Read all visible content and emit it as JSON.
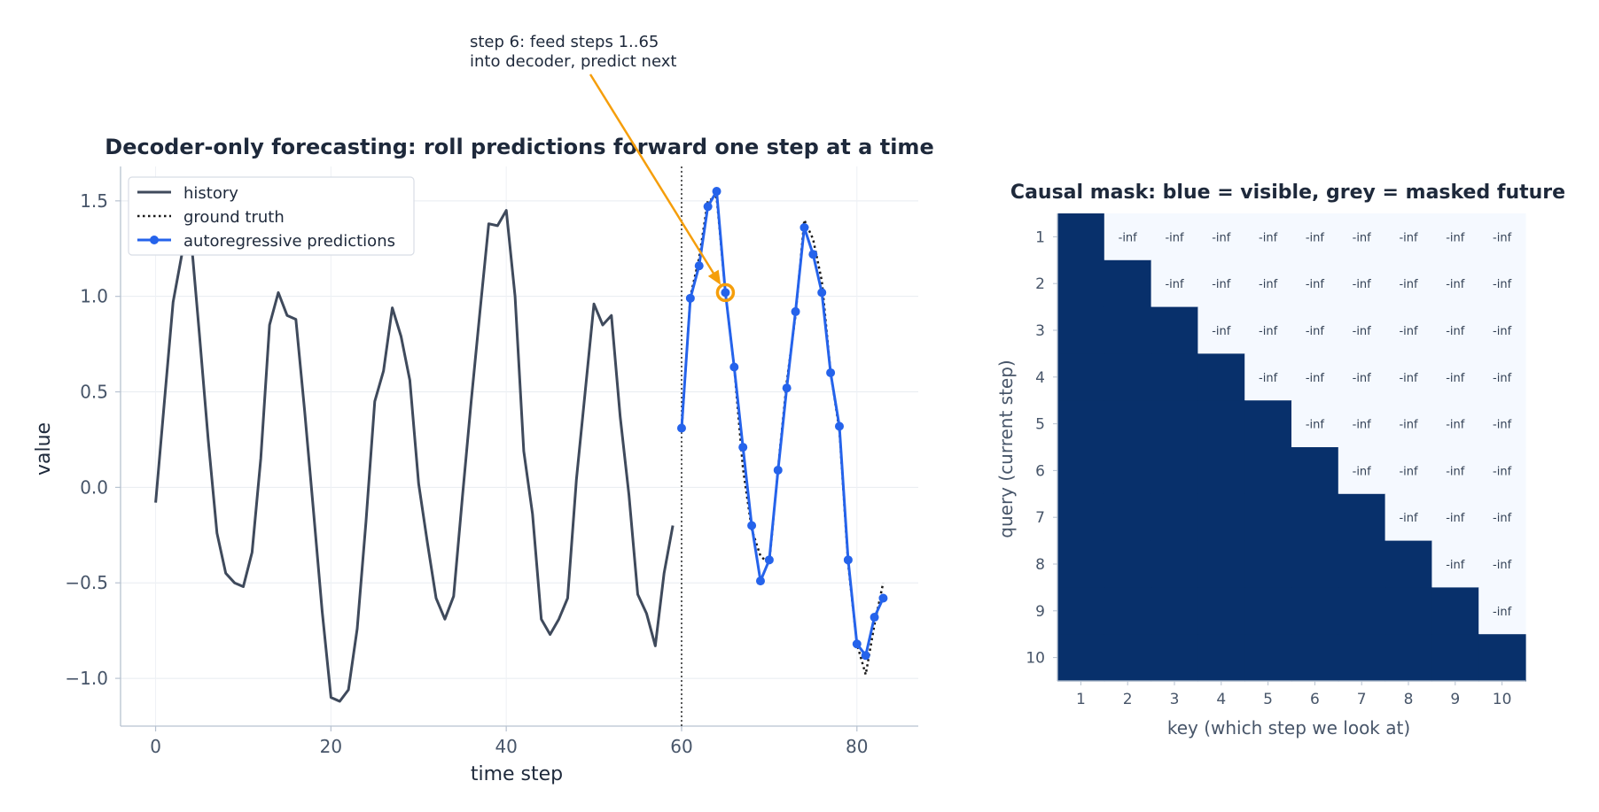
{
  "colors": {
    "history": "#3f4a5c",
    "truth": "#1a1a1a",
    "pred": "#2563eb",
    "highlight": "#f59e0b",
    "title": "#1e293b",
    "axis": "#475569",
    "mask_visible": "#08306b",
    "mask_masked": "#f5f9ff"
  },
  "chart_data": [
    {
      "type": "line",
      "title": "Decoder-only forecasting: roll predictions forward one step at a time",
      "xlabel": "time step",
      "ylabel": "value",
      "xlim": [
        -4,
        87
      ],
      "ylim": [
        -1.25,
        1.68
      ],
      "xticks": [
        0,
        20,
        40,
        60,
        80
      ],
      "yticks": [
        1.5,
        1.0,
        0.5,
        0.0,
        -0.5,
        -1.0
      ],
      "ytick_labels": [
        "1.5",
        "1.0",
        "0.5",
        "0.0",
        "−0.5",
        "−1.0"
      ],
      "grid": true,
      "legend_placement": "upper-left",
      "forecast_start": 60,
      "series": [
        {
          "name": "history",
          "style": "solid",
          "x": [
            0,
            1,
            2,
            3,
            4,
            5,
            6,
            7,
            8,
            9,
            10,
            11,
            12,
            13,
            14,
            15,
            16,
            17,
            18,
            19,
            20,
            21,
            22,
            23,
            24,
            25,
            26,
            27,
            28,
            29,
            30,
            31,
            32,
            33,
            34,
            35,
            36,
            37,
            38,
            39,
            40,
            41,
            42,
            43,
            44,
            45,
            46,
            47,
            48,
            49,
            50,
            51,
            52,
            53,
            54,
            55,
            56,
            57,
            58,
            59
          ],
          "y": [
            -0.08,
            0.45,
            0.97,
            1.22,
            1.33,
            0.8,
            0.25,
            -0.24,
            -0.45,
            -0.5,
            -0.52,
            -0.34,
            0.15,
            0.85,
            1.02,
            0.9,
            0.88,
            0.4,
            -0.12,
            -0.65,
            -1.1,
            -1.12,
            -1.06,
            -0.74,
            -0.18,
            0.45,
            0.61,
            0.94,
            0.79,
            0.56,
            0.02,
            -0.29,
            -0.58,
            -0.69,
            -0.57,
            -0.05,
            0.45,
            0.92,
            1.38,
            1.37,
            1.45,
            1.0,
            0.19,
            -0.14,
            -0.69,
            -0.77,
            -0.69,
            -0.58,
            0.04,
            0.5,
            0.96,
            0.85,
            0.9,
            0.37,
            -0.04,
            -0.56,
            -0.66,
            -0.83,
            -0.45,
            -0.2
          ]
        },
        {
          "name": "ground truth",
          "style": "dotted",
          "x": [
            60,
            61,
            62,
            63,
            64,
            65,
            66,
            67,
            68,
            69,
            70,
            71,
            72,
            73,
            74,
            75,
            76,
            77,
            78,
            79,
            80,
            81,
            82,
            83
          ],
          "y": [
            0.3,
            1.0,
            1.2,
            1.5,
            1.52,
            1.02,
            0.63,
            0.1,
            -0.22,
            -0.36,
            -0.4,
            0.1,
            0.55,
            0.9,
            1.4,
            1.3,
            1.08,
            0.6,
            0.3,
            -0.4,
            -0.82,
            -0.98,
            -0.72,
            -0.5
          ]
        },
        {
          "name": "autoregressive predictions",
          "style": "solid-marker",
          "x": [
            60,
            61,
            62,
            63,
            64,
            65,
            66,
            67,
            68,
            69,
            70,
            71,
            72,
            73,
            74,
            75,
            76,
            77,
            78,
            79,
            80,
            81,
            82,
            83
          ],
          "y": [
            0.31,
            0.99,
            1.16,
            1.47,
            1.55,
            1.02,
            0.63,
            0.21,
            -0.2,
            -0.49,
            -0.38,
            0.09,
            0.52,
            0.92,
            1.36,
            1.22,
            1.02,
            0.6,
            0.32,
            -0.38,
            -0.82,
            -0.88,
            -0.68,
            -0.58
          ]
        }
      ],
      "highlight": {
        "x": 65,
        "y": 1.02
      },
      "annotation": {
        "lines": [
          "step 6: feed steps 1..65",
          "into decoder, predict next"
        ],
        "target": {
          "x": 65,
          "y": 1.02
        }
      }
    },
    {
      "type": "heatmap",
      "title": "Causal mask: blue = visible, grey = masked future",
      "xlabel": "key (which step we look at)",
      "ylabel": "query (current step)",
      "rows": [
        "1",
        "2",
        "3",
        "4",
        "5",
        "6",
        "7",
        "8",
        "9",
        "10"
      ],
      "cols": [
        "1",
        "2",
        "3",
        "4",
        "5",
        "6",
        "7",
        "8",
        "9",
        "10"
      ],
      "masked_label": "-inf",
      "rule": "cell(query q, key k) visible when k <= q, else -inf"
    }
  ]
}
